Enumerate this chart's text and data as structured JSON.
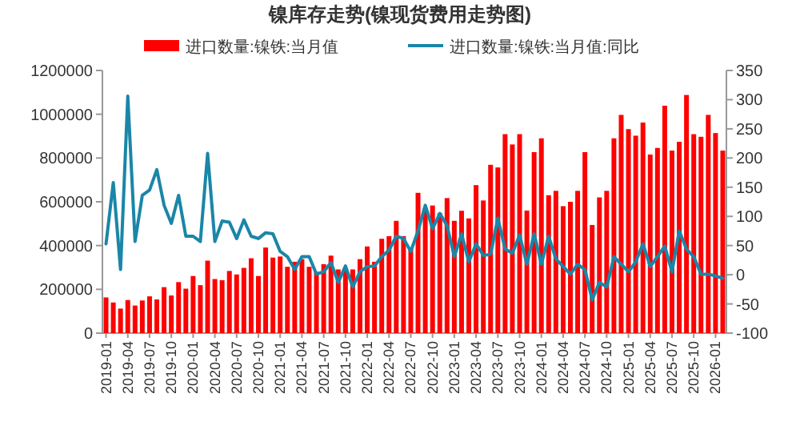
{
  "chart_data": {
    "type": "bar",
    "title": "镍库存走势(镍现货费用走势图)",
    "categories": [
      "2019-01",
      null,
      null,
      "2019-04",
      null,
      null,
      "2019-07",
      null,
      null,
      "2019-10",
      null,
      null,
      "2020-01",
      null,
      null,
      "2020-04",
      null,
      null,
      "2020-07",
      null,
      null,
      "2020-10",
      null,
      null,
      "2021-01",
      null,
      null,
      "2021-04",
      null,
      null,
      "2021-07",
      null,
      null,
      "2021-10",
      null,
      null,
      "2022-01",
      null,
      null,
      "2022-04",
      null,
      null,
      "2022-07",
      null,
      null,
      "2022-10",
      null,
      null,
      "2023-01",
      null,
      null,
      "2023-04",
      null,
      null,
      "2023-07",
      null,
      null,
      "2023-10",
      null,
      null,
      "2024-01",
      null,
      null,
      "2024-04",
      null,
      null,
      "2024-07",
      null,
      null,
      "2024-10",
      null,
      null,
      "2025-01",
      null,
      null,
      "2025-04",
      null,
      null,
      "2025-07",
      null,
      null,
      "2025-10",
      null,
      null,
      "2026-01",
      null
    ],
    "series": [
      {
        "name": "进口数量:镍铁:当月值",
        "color": "#ff0000",
        "values": [
          163000,
          140000,
          112000,
          151000,
          126000,
          149000,
          168000,
          154000,
          210000,
          172000,
          233000,
          203000,
          261000,
          219000,
          331000,
          247000,
          242000,
          284000,
          268000,
          298000,
          342000,
          261000,
          391000,
          345000,
          350000,
          303000,
          326000,
          338000,
          303000,
          280000,
          315000,
          354000,
          291000,
          291000,
          291000,
          338000,
          396000,
          326000,
          431000,
          443000,
          513000,
          443000,
          384000,
          641000,
          571000,
          583000,
          548000,
          617000,
          513000,
          559000,
          524000,
          676000,
          606000,
          769000,
          757000,
          909000,
          862000,
          909000,
          560000,
          827000,
          890000,
          630000,
          650000,
          580000,
          600000,
          650000,
          827000,
          494000,
          620000,
          650000,
          890000,
          997000,
          932000,
          902000,
          962000,
          816000,
          846000,
          1039000,
          834000,
          874000,
          1088000,
          909000,
          897000,
          997000,
          914000,
          834000
        ]
      },
      {
        "name": "进口数量:镍铁:当月值:同比",
        "type": "line",
        "axis": "y2",
        "color": "#1a86a8",
        "values": [
          53,
          158,
          9,
          306,
          57,
          136,
          145,
          180,
          119,
          88,
          136,
          66,
          66,
          57,
          208,
          57,
          92,
          90,
          62,
          94,
          66,
          62,
          72,
          70,
          40,
          31,
          9,
          31,
          31,
          1,
          5,
          21,
          -13,
          15,
          -21,
          5,
          14,
          15,
          31,
          42,
          66,
          62,
          40,
          75,
          119,
          79,
          105,
          84,
          31,
          70,
          22,
          53,
          33,
          35,
          97,
          44,
          37,
          68,
          18,
          70,
          18,
          66,
          27,
          14,
          1,
          18,
          9,
          -43,
          -13,
          -21,
          31,
          18,
          5,
          22,
          53,
          14,
          31,
          49,
          5,
          75,
          44,
          31,
          1,
          1,
          -2,
          -6
        ]
      }
    ],
    "ylim": [
      0,
      1200000
    ],
    "yticks": [
      0,
      200000,
      400000,
      600000,
      800000,
      1000000,
      1200000
    ],
    "y2lim": [
      -100,
      350
    ],
    "y2ticks": [
      -100,
      -50,
      0,
      50,
      100,
      150,
      200,
      250,
      300,
      350
    ],
    "legend": "top"
  }
}
